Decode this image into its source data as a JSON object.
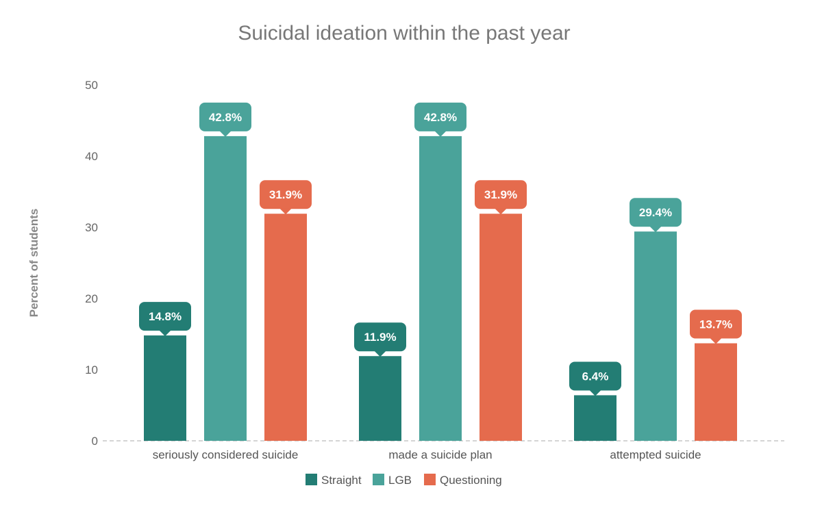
{
  "chart_data": {
    "type": "bar",
    "title": "Suicidal ideation within the past year",
    "xlabel": "",
    "ylabel": "Percent of students",
    "ylim": [
      0,
      50
    ],
    "yticks": [
      0,
      10,
      20,
      30,
      40,
      50
    ],
    "grid": false,
    "legend_position": "bottom",
    "categories": [
      "seriously considered suicide",
      "made a suicide plan",
      "attempted suicide"
    ],
    "series": [
      {
        "name": "Straight",
        "color": "#237d74",
        "values": [
          14.8,
          11.9,
          6.4
        ],
        "labels": [
          "14.8%",
          "11.9%",
          "6.4%"
        ]
      },
      {
        "name": "LGB",
        "color": "#4aa39a",
        "values": [
          42.8,
          42.8,
          29.4
        ],
        "labels": [
          "42.8%",
          "42.8%",
          "29.4%"
        ]
      },
      {
        "name": "Questioning",
        "color": "#e56b4d",
        "values": [
          31.9,
          31.9,
          13.7
        ],
        "labels": [
          "31.9%",
          "31.9%",
          "13.7%"
        ]
      }
    ]
  }
}
